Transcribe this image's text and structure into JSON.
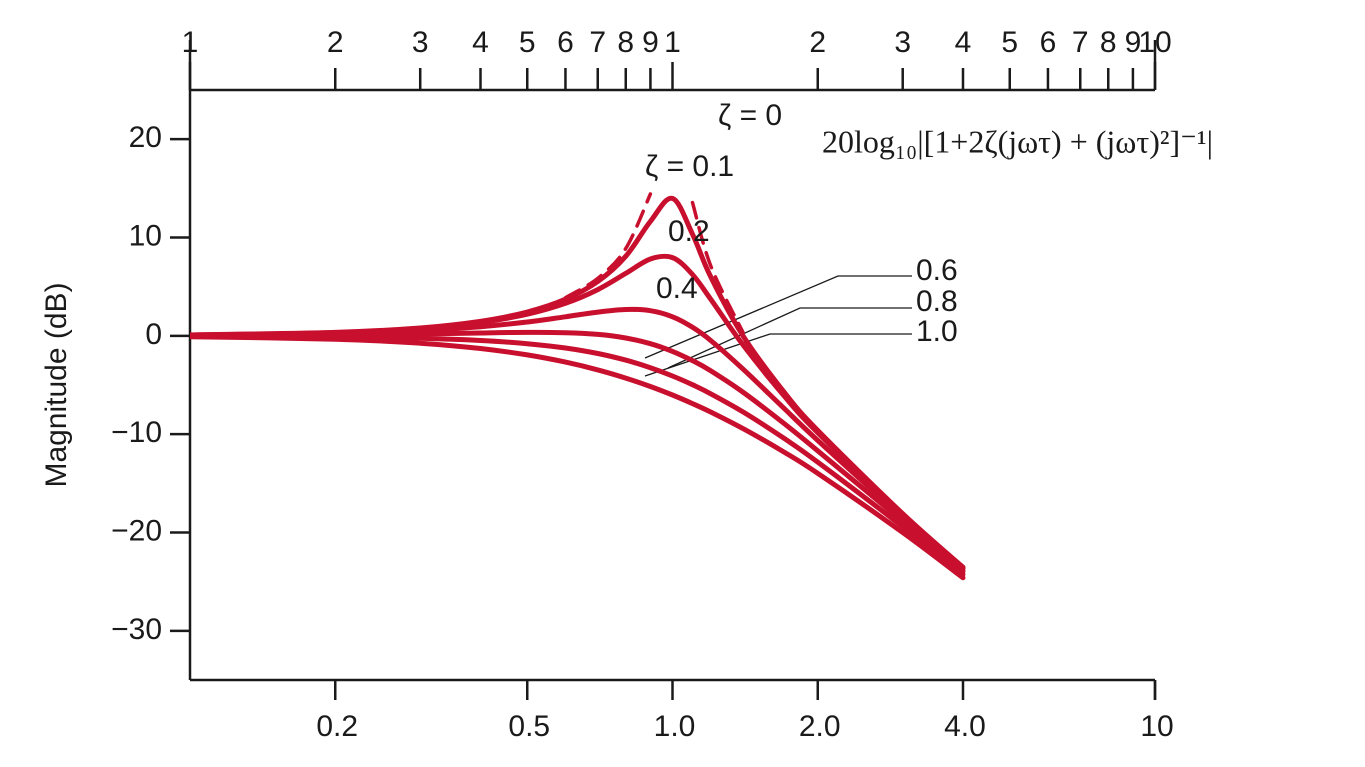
{
  "chart_data": {
    "type": "line",
    "xscale": "log",
    "grid": false,
    "ylabel": "Magnitude (dB)",
    "annotation": "20log₁₀|[1+2ζ(jωτ) + (jωτ)²]⁻¹|",
    "xlim": [
      0.1,
      10
    ],
    "ylim": [
      -35,
      25
    ],
    "xticks": [
      0.2,
      0.5,
      {
        "value": 1,
        "label": "1.0"
      },
      {
        "value": 2,
        "label": "2.0"
      },
      {
        "value": 4,
        "label": "4.0"
      },
      10
    ],
    "top_xticks": [
      {
        "value": 0.1,
        "label": "1"
      },
      {
        "value": 0.2,
        "label": "2"
      },
      {
        "value": 0.3,
        "label": "3"
      },
      {
        "value": 0.4,
        "label": "4"
      },
      {
        "value": 0.5,
        "label": "5"
      },
      {
        "value": 0.6,
        "label": "6"
      },
      {
        "value": 0.7,
        "label": "7"
      },
      {
        "value": 0.8,
        "label": "8"
      },
      {
        "value": 0.9,
        "label": "9"
      },
      {
        "value": 1,
        "label": "1"
      },
      {
        "value": 2,
        "label": "2"
      },
      {
        "value": 3,
        "label": "3"
      },
      {
        "value": 4,
        "label": "4"
      },
      {
        "value": 5,
        "label": "5"
      },
      {
        "value": 6,
        "label": "6"
      },
      {
        "value": 7,
        "label": "7"
      },
      {
        "value": 8,
        "label": "8"
      },
      {
        "value": 9,
        "label": "9"
      },
      10
    ],
    "yticks": [
      {
        "value": -30,
        "label": "−30"
      },
      {
        "value": -20,
        "label": "−20"
      },
      {
        "value": -10,
        "label": "−10"
      },
      0,
      10,
      20
    ],
    "x": [
      0.1,
      0.2,
      0.3,
      0.4,
      0.5,
      0.6,
      0.7,
      0.8,
      0.9,
      1.0,
      1.1,
      1.2,
      1.4,
      1.7,
      2,
      3,
      4
    ],
    "series": [
      {
        "name": "ζ = 0",
        "color": "#c8102e",
        "dashed": true,
        "values": [
          null,
          null,
          null,
          null,
          null,
          3.88,
          5.85,
          8.87,
          14.42,
          null,
          13.56,
          7.13,
          0.35,
          null,
          null,
          null,
          null
        ]
      },
      {
        "name": "ζ = 0.1",
        "color": "#c8102e",
        "values": [
          0.09,
          0.35,
          0.8,
          1.48,
          2.42,
          3.73,
          5.53,
          8.09,
          11.64,
          13.98,
          10.34,
          6.0,
          0.0,
          -5.67,
          -9.62,
          -18.09,
          -23.53
        ]
      },
      {
        "name": "0.2",
        "color": "#c8102e",
        "values": [
          0.08,
          0.32,
          0.74,
          1.36,
          2.2,
          3.31,
          4.7,
          6.35,
          7.81,
          7.96,
          6.24,
          3.73,
          -0.92,
          -6.06,
          -9.84,
          -18.16,
          -23.57
        ]
      },
      {
        "name": "0.4",
        "color": "#c8102e",
        "values": [
          0.06,
          0.24,
          0.53,
          0.93,
          1.41,
          1.94,
          2.41,
          2.68,
          2.56,
          1.94,
          0.87,
          -0.47,
          -3.38,
          -7.34,
          -10.63,
          -18.44,
          -23.71
        ]
      },
      {
        "name": "0.6",
        "color": "#c8102e",
        "values": [
          0.02,
          0.09,
          0.19,
          0.29,
          0.35,
          0.32,
          0.15,
          -0.22,
          -0.8,
          -1.58,
          -2.52,
          -3.55,
          -5.73,
          -8.88,
          -11.69,
          -18.86,
          -23.95
        ]
      },
      {
        "name": "0.8",
        "color": "#c8102e",
        "values": [
          -0.02,
          -0.1,
          -0.25,
          -0.47,
          -0.8,
          -1.24,
          -1.8,
          -2.47,
          -3.24,
          -4.08,
          -4.97,
          -5.89,
          -7.74,
          -10.4,
          -12.84,
          -19.4,
          -24.25
        ]
      },
      {
        "name": "1.0",
        "color": "#c8102e",
        "values": [
          -0.09,
          -0.34,
          -0.75,
          -1.29,
          -1.94,
          -2.67,
          -3.46,
          -4.3,
          -5.15,
          -6.02,
          -6.89,
          -7.75,
          -9.43,
          -11.8,
          -13.98,
          -20.0,
          -24.61
        ]
      }
    ]
  }
}
